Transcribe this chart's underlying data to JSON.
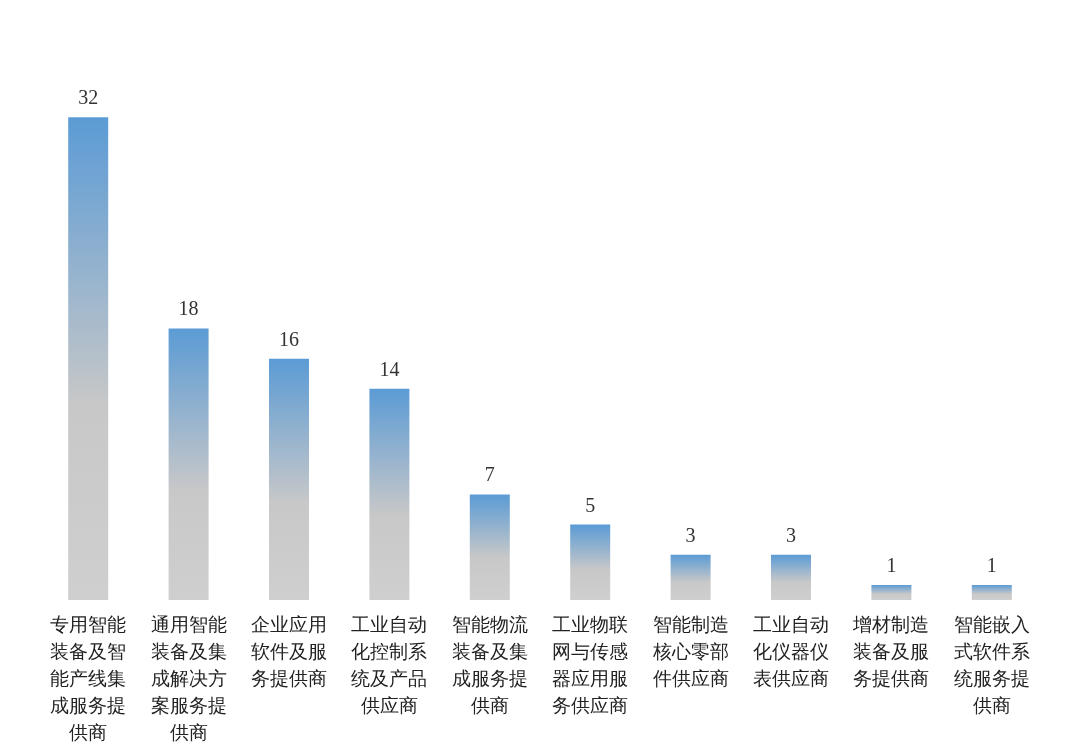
{
  "chart_data": {
    "type": "bar",
    "categories": [
      "专用智能装备及智能产线集成服务提供商",
      "通用智能装备及集成解决方案服务提供商",
      "企业应用软件及服务提供商",
      "工业自动化控制系统及产品供应商",
      "智能物流装备及集成服务提供商",
      "工业物联网与传感器应用服务供应商",
      "智能制造核心零部件供应商",
      "工业自动化仪器仪表供应商",
      "增材制造装备及服务提供商",
      "智能嵌入式软件系统服务提供商"
    ],
    "values": [
      32,
      18,
      16,
      14,
      7,
      5,
      3,
      3,
      1,
      1
    ],
    "color": "#5b9bd5",
    "data_labels": true
  }
}
